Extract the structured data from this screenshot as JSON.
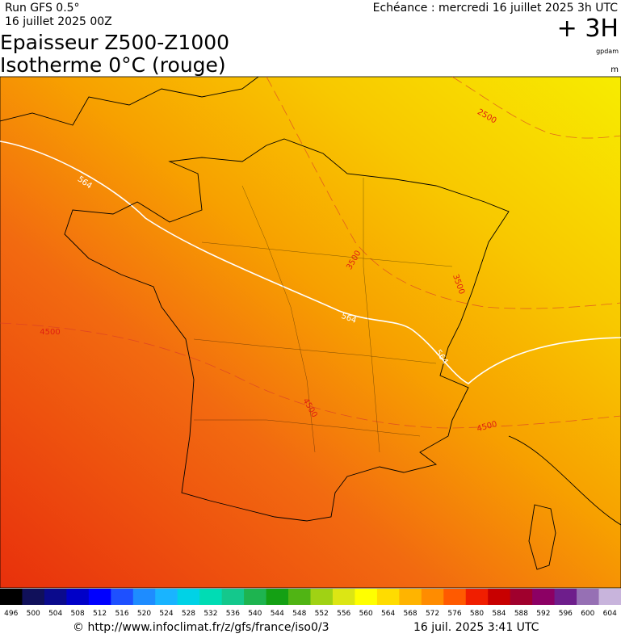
{
  "header": {
    "run": "Run GFS 0.5°",
    "date": "16 juillet 2025 00Z",
    "title": "Epaisseur Z500-Z1000",
    "subtitle": "Isotherme 0°C (rouge)",
    "echeance": "Echéance : mercredi 16 juillet 2025 3h UTC",
    "offset": "+ 3H",
    "unit_thickness": "gpdam",
    "unit_iso": "m"
  },
  "map": {
    "contour_labels": [
      "564",
      "564",
      "564",
      "2500",
      "3500",
      "3500",
      "4500",
      "4500",
      "4500"
    ]
  },
  "colorbar": {
    "labels": [
      496,
      500,
      504,
      508,
      512,
      516,
      520,
      524,
      528,
      532,
      536,
      540,
      544,
      548,
      552,
      556,
      560,
      564,
      568,
      572,
      576,
      580,
      584,
      588,
      592,
      596,
      600,
      604
    ],
    "colors": [
      "#000000",
      "#10105a",
      "#0a0a8c",
      "#0000c8",
      "#0000ff",
      "#1e50ff",
      "#1e8cff",
      "#19b4ff",
      "#00d2e6",
      "#00dcb4",
      "#14c88c",
      "#1eb450",
      "#14a014",
      "#50b414",
      "#a0d214",
      "#dce614",
      "#ffff00",
      "#ffdc00",
      "#ffb400",
      "#ff8c00",
      "#ff5a00",
      "#f01e00",
      "#c80000",
      "#a0002d",
      "#8c0064",
      "#6e1e8c",
      "#9670b4",
      "#c8b4dc"
    ]
  },
  "footer": {
    "source": "© http://www.infoclimat.fr/z/gfs/france/iso0/3",
    "timestamp": "16 juil. 2025  3:41 UTC"
  }
}
